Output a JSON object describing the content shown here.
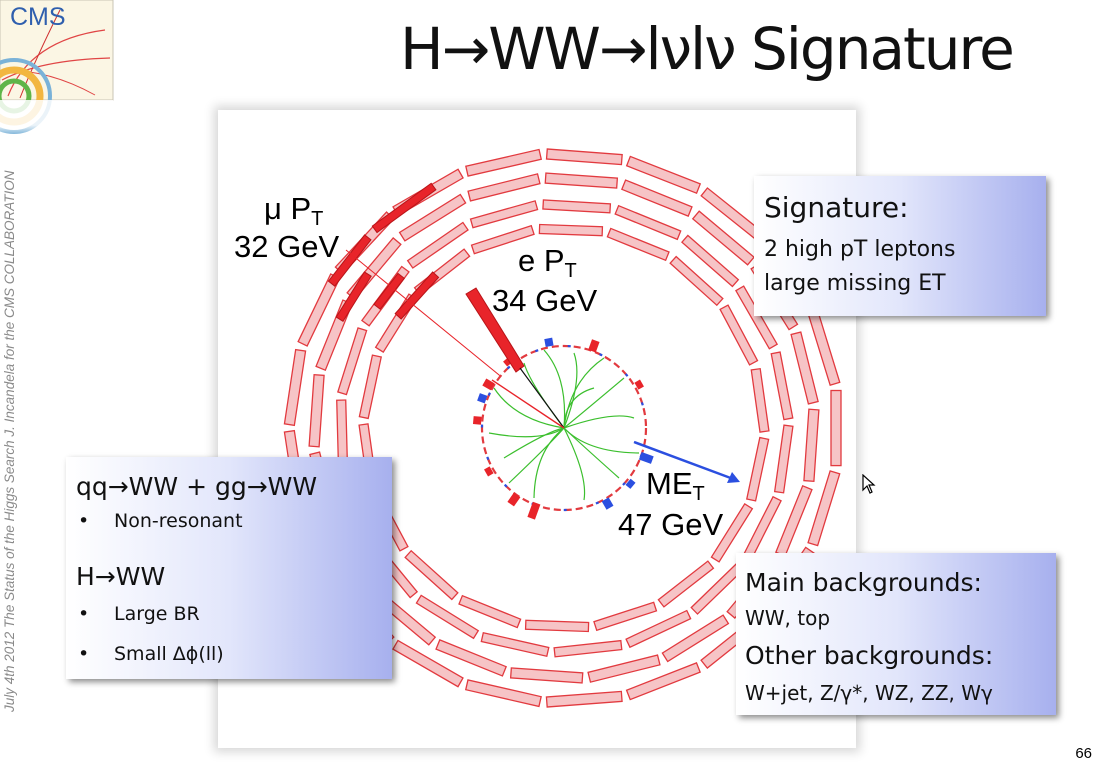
{
  "sidebar": {
    "footer": "July 4th 2012  The Status of the Higgs Search   J. Incandela for the CMS COLLABORATION"
  },
  "logo": {
    "text": "CMS"
  },
  "title": "H→WW→lνlν Signature",
  "event_display": {
    "mu_label": "μ P",
    "mu_sub": "T",
    "mu_value": "32 GeV",
    "e_label": "e P",
    "e_sub": "T",
    "e_value": "34 GeV",
    "met_label": "ME",
    "met_sub": "T",
    "met_value": "47 GeV"
  },
  "signature_box": {
    "heading": "Signature:",
    "line1": "2 high pT leptons",
    "line2": "large missing ET"
  },
  "background_box": {
    "heading1": "qq→WW + gg→WW",
    "bullet1": "Non-resonant",
    "heading2": "H→WW",
    "bullet2": "Large BR",
    "bullet3": "Small Δϕ(ll)"
  },
  "main_bkg_box": {
    "heading1": "Main backgrounds:",
    "line1": "WW, top",
    "heading2": "Other backgrounds:",
    "line2": "W+jet,  Z/γ*, WZ, ZZ, Wγ"
  },
  "page_number": "66",
  "colors": {
    "tower_fill": "#f6c4c6",
    "tower_stroke": "#e23a3f",
    "hit": "#e8242a",
    "met": "#2b4fe0",
    "tracks": "#3cbf2e"
  }
}
